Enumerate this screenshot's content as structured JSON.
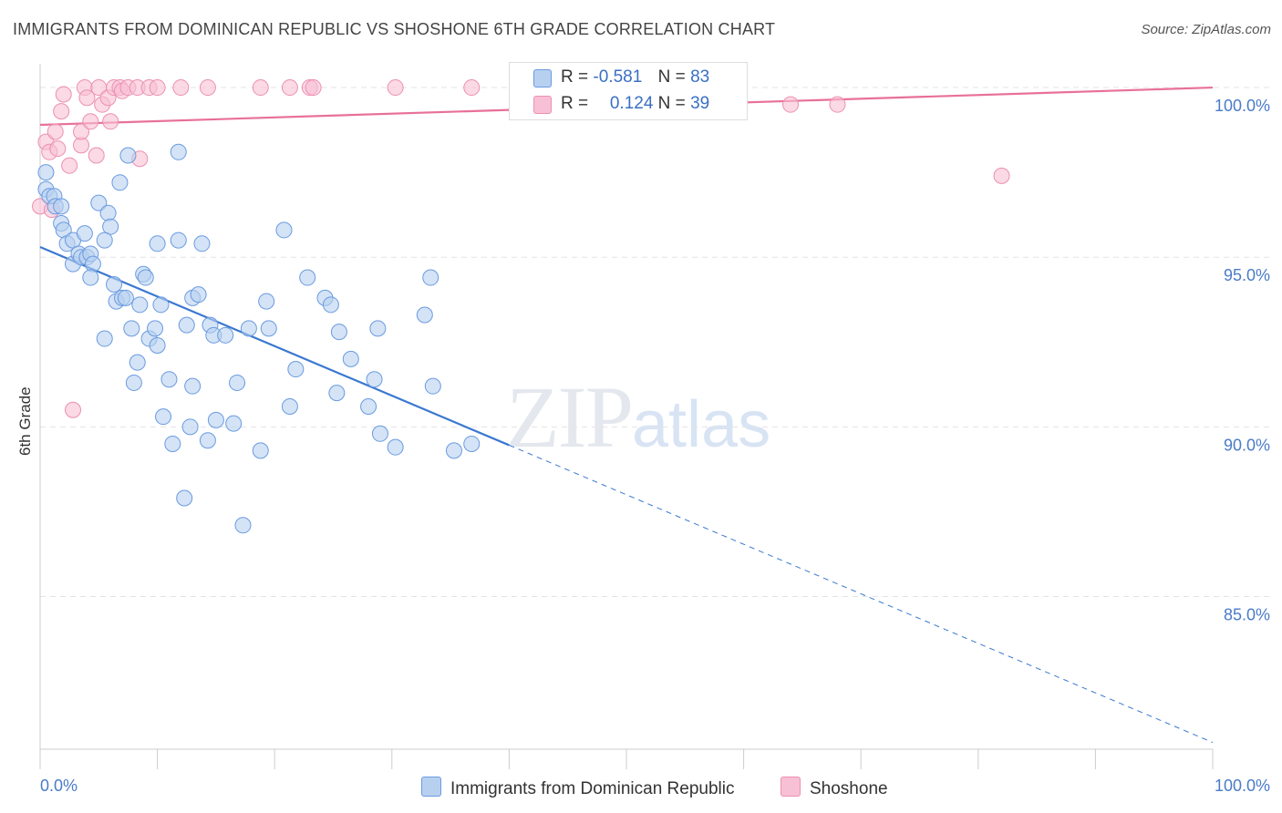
{
  "title": "IMMIGRANTS FROM DOMINICAN REPUBLIC VS SHOSHONE 6TH GRADE CORRELATION CHART",
  "source": "Source: ZipAtlas.com",
  "watermark": {
    "zip": "ZIP",
    "atlas": "atlas"
  },
  "legend": {
    "r_label": "R =",
    "n_label": "N =",
    "blue": {
      "r": "-0.581",
      "n": "83"
    },
    "pink": {
      "r": "0.124",
      "n": "39"
    }
  },
  "colors": {
    "blue_fill": "#b8d0f0",
    "blue_stroke": "#6a9be0",
    "blue_line": "#3a78d0",
    "pink_fill": "#f8c0d4",
    "pink_stroke": "#ec90b0",
    "pink_line": "#e8709a",
    "grid": "#e3e3e3",
    "tick_text": "#4a7bc8"
  },
  "chart_data": {
    "type": "scatter",
    "title": "IMMIGRANTS FROM DOMINICAN REPUBLIC VS SHOSHONE 6TH GRADE CORRELATION CHART",
    "xlabel": "",
    "ylabel": "6th Grade",
    "xlim": [
      0,
      100
    ],
    "ylim": [
      80.5,
      100.7
    ],
    "x_ticks": [
      "0.0%",
      "100.0%"
    ],
    "y_ticks": [
      {
        "value": 100,
        "label": "100.0%"
      },
      {
        "value": 95,
        "label": "95.0%"
      },
      {
        "value": 90,
        "label": "90.0%"
      },
      {
        "value": 85,
        "label": "85.0%"
      }
    ],
    "grid": true,
    "legend_position": "top-center",
    "series": [
      {
        "name": "Immigrants from Dominican Republic",
        "color": "#6a9be0",
        "r": -0.581,
        "n": 83,
        "trend": {
          "x0": 0,
          "y0": 95.3,
          "x1": 100,
          "y1": 80.7,
          "solid_until_x": 40
        },
        "points": [
          [
            0.5,
            97.5
          ],
          [
            0.5,
            97.0
          ],
          [
            0.8,
            96.8
          ],
          [
            1.2,
            96.8
          ],
          [
            1.3,
            96.5
          ],
          [
            1.8,
            96.5
          ],
          [
            1.8,
            96.0
          ],
          [
            2.0,
            95.8
          ],
          [
            2.3,
            95.4
          ],
          [
            2.8,
            95.5
          ],
          [
            2.8,
            94.8
          ],
          [
            3.3,
            95.1
          ],
          [
            3.5,
            95.0
          ],
          [
            3.8,
            95.7
          ],
          [
            4.0,
            95.0
          ],
          [
            4.3,
            95.1
          ],
          [
            4.5,
            94.8
          ],
          [
            4.3,
            94.4
          ],
          [
            5.0,
            96.6
          ],
          [
            5.8,
            96.3
          ],
          [
            6.0,
            95.9
          ],
          [
            5.5,
            95.5
          ],
          [
            6.3,
            94.2
          ],
          [
            6.5,
            93.7
          ],
          [
            6.8,
            97.2
          ],
          [
            7.0,
            93.8
          ],
          [
            7.3,
            93.8
          ],
          [
            7.5,
            98.0
          ],
          [
            5.5,
            92.6
          ],
          [
            7.8,
            92.9
          ],
          [
            8.0,
            91.3
          ],
          [
            8.3,
            91.9
          ],
          [
            8.5,
            93.6
          ],
          [
            8.8,
            94.5
          ],
          [
            9.0,
            94.4
          ],
          [
            9.3,
            92.6
          ],
          [
            9.8,
            92.9
          ],
          [
            10.0,
            95.4
          ],
          [
            10.0,
            92.4
          ],
          [
            10.3,
            93.6
          ],
          [
            10.5,
            90.3
          ],
          [
            11.0,
            91.4
          ],
          [
            11.3,
            89.5
          ],
          [
            11.8,
            98.1
          ],
          [
            11.8,
            95.5
          ],
          [
            12.3,
            87.9
          ],
          [
            12.5,
            93.0
          ],
          [
            12.8,
            90.0
          ],
          [
            13.0,
            93.8
          ],
          [
            13.0,
            91.2
          ],
          [
            13.5,
            93.9
          ],
          [
            13.8,
            95.4
          ],
          [
            14.3,
            89.6
          ],
          [
            14.5,
            93.0
          ],
          [
            14.8,
            92.7
          ],
          [
            15.0,
            90.2
          ],
          [
            15.8,
            92.7
          ],
          [
            16.5,
            90.1
          ],
          [
            16.8,
            91.3
          ],
          [
            17.3,
            87.1
          ],
          [
            17.8,
            92.9
          ],
          [
            18.8,
            89.3
          ],
          [
            19.3,
            93.7
          ],
          [
            19.5,
            92.9
          ],
          [
            20.8,
            95.8
          ],
          [
            21.3,
            90.6
          ],
          [
            21.8,
            91.7
          ],
          [
            22.8,
            94.4
          ],
          [
            24.3,
            93.8
          ],
          [
            24.8,
            93.6
          ],
          [
            25.3,
            91.0
          ],
          [
            25.5,
            92.8
          ],
          [
            26.5,
            92.0
          ],
          [
            28.0,
            90.6
          ],
          [
            28.5,
            91.4
          ],
          [
            28.8,
            92.9
          ],
          [
            29.0,
            89.8
          ],
          [
            30.3,
            89.4
          ],
          [
            32.8,
            93.3
          ],
          [
            33.3,
            94.4
          ],
          [
            33.5,
            91.2
          ],
          [
            35.3,
            89.3
          ],
          [
            36.8,
            89.5
          ]
        ]
      },
      {
        "name": "Shoshone",
        "color": "#ec90b0",
        "r": 0.124,
        "n": 39,
        "trend": {
          "x0": 0,
          "y0": 98.9,
          "x1": 100,
          "y1": 100.0
        },
        "points": [
          [
            0.0,
            96.5
          ],
          [
            0.5,
            98.4
          ],
          [
            0.8,
            98.1
          ],
          [
            1.0,
            96.4
          ],
          [
            1.3,
            98.7
          ],
          [
            1.5,
            98.2
          ],
          [
            1.8,
            99.3
          ],
          [
            2.0,
            99.8
          ],
          [
            2.5,
            97.7
          ],
          [
            2.8,
            90.5
          ],
          [
            3.5,
            98.3
          ],
          [
            3.5,
            98.7
          ],
          [
            3.8,
            100.0
          ],
          [
            4.0,
            99.7
          ],
          [
            4.3,
            99.0
          ],
          [
            4.8,
            98.0
          ],
          [
            5.0,
            100.0
          ],
          [
            5.3,
            99.5
          ],
          [
            5.8,
            99.7
          ],
          [
            6.0,
            99.0
          ],
          [
            6.3,
            100.0
          ],
          [
            6.8,
            100.0
          ],
          [
            7.0,
            99.9
          ],
          [
            7.5,
            100.0
          ],
          [
            8.3,
            100.0
          ],
          [
            8.5,
            97.9
          ],
          [
            9.3,
            100.0
          ],
          [
            10.0,
            100.0
          ],
          [
            12.0,
            100.0
          ],
          [
            14.3,
            100.0
          ],
          [
            18.8,
            100.0
          ],
          [
            21.3,
            100.0
          ],
          [
            23.0,
            100.0
          ],
          [
            23.3,
            100.0
          ],
          [
            30.3,
            100.0
          ],
          [
            36.8,
            100.0
          ],
          [
            64.0,
            99.5
          ],
          [
            68.0,
            99.5
          ],
          [
            82.0,
            97.4
          ]
        ]
      }
    ]
  }
}
